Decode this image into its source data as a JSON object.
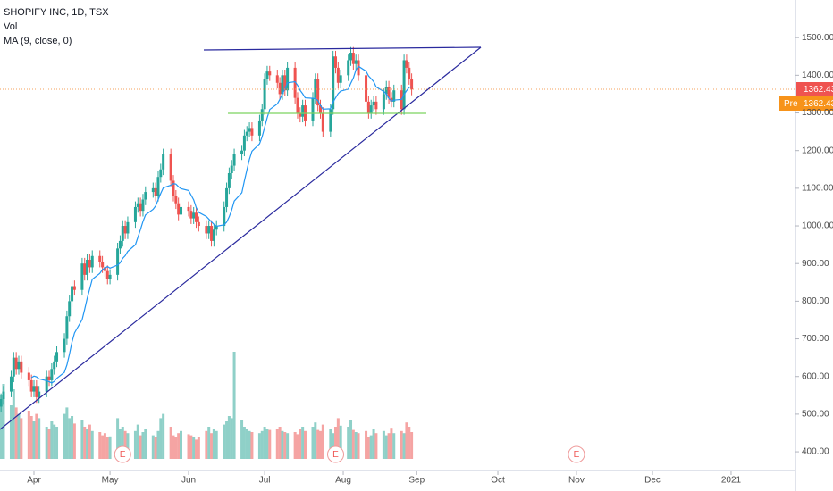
{
  "chart_data": {
    "type": "candlestick",
    "title": "SHOPIFY INC, 1D, TSX",
    "volume_label": "Vol",
    "ma_label": "MA (9, close, 0)",
    "x": [
      -13,
      -12,
      -9,
      -8,
      -7,
      -6,
      -5,
      -2,
      -1,
      0,
      1,
      2,
      5,
      6,
      7,
      8,
      9,
      12,
      13,
      14,
      15,
      16,
      19,
      20,
      21,
      22,
      23,
      26,
      27,
      28,
      29,
      30,
      33,
      34,
      35,
      36,
      37,
      40,
      41,
      42,
      43,
      44,
      47,
      48,
      49,
      50,
      51,
      54,
      55,
      56,
      57,
      58,
      61,
      62,
      63,
      64,
      65,
      68,
      69,
      70,
      71,
      72,
      75,
      76,
      77,
      78,
      79,
      82,
      83,
      84,
      85,
      86,
      89,
      90,
      91,
      92,
      93,
      96,
      97,
      98,
      99,
      100,
      103,
      104,
      105,
      106,
      107,
      110,
      111,
      112,
      113,
      114,
      117,
      118,
      119,
      120,
      121,
      124,
      125,
      126,
      127,
      128,
      131,
      132,
      133,
      134,
      135,
      138,
      139,
      140,
      141,
      142,
      145,
      146,
      147,
      148,
      149
    ],
    "open": [
      520,
      540,
      560,
      600,
      650,
      620,
      640,
      610,
      590,
      560,
      575,
      545,
      560,
      600,
      590,
      620,
      640,
      665,
      700,
      760,
      800,
      840,
      830,
      900,
      870,
      910,
      890,
      920,
      905,
      890,
      880,
      860,
      870,
      940,
      960,
      1000,
      980,
      1010,
      1050,
      1060,
      1040,
      1070,
      1090,
      1100,
      1080,
      1130,
      1150,
      1190,
      1120,
      1080,
      1060,
      1030,
      1050,
      1040,
      1020,
      1035,
      1010,
      1000,
      980,
      1000,
      960,
      990,
      1000,
      1050,
      1100,
      1140,
      1160,
      1190,
      1200,
      1240,
      1250,
      1260,
      1240,
      1280,
      1310,
      1390,
      1410,
      1400,
      1380,
      1350,
      1400,
      1360,
      1420,
      1340,
      1300,
      1290,
      1320,
      1280,
      1340,
      1390,
      1320,
      1300,
      1250,
      1310,
      1450,
      1420,
      1380,
      1400,
      1440,
      1460,
      1430,
      1440,
      1400,
      1330,
      1300,
      1320,
      1330,
      1310,
      1350,
      1370,
      1340,
      1330,
      1360,
      1310,
      1440,
      1420,
      1390
    ],
    "high": [
      555,
      575,
      615,
      665,
      665,
      655,
      655,
      625,
      605,
      590,
      590,
      575,
      615,
      615,
      635,
      655,
      680,
      715,
      775,
      815,
      855,
      855,
      915,
      915,
      925,
      925,
      935,
      935,
      920,
      905,
      895,
      885,
      955,
      975,
      1015,
      1015,
      1025,
      1065,
      1075,
      1075,
      1085,
      1105,
      1115,
      1115,
      1145,
      1165,
      1205,
      1205,
      1135,
      1095,
      1075,
      1065,
      1065,
      1055,
      1050,
      1050,
      1025,
      1015,
      1015,
      1015,
      1005,
      1015,
      1065,
      1115,
      1155,
      1175,
      1205,
      1215,
      1255,
      1265,
      1275,
      1275,
      1295,
      1325,
      1405,
      1425,
      1425,
      1415,
      1395,
      1415,
      1415,
      1435,
      1435,
      1355,
      1315,
      1335,
      1335,
      1355,
      1405,
      1405,
      1335,
      1315,
      1325,
      1465,
      1465,
      1435,
      1415,
      1455,
      1475,
      1475,
      1455,
      1455,
      1415,
      1345,
      1335,
      1345,
      1345,
      1365,
      1385,
      1385,
      1355,
      1375,
      1375,
      1455,
      1455,
      1435,
      1405
    ],
    "low": [
      505,
      525,
      545,
      585,
      605,
      605,
      595,
      575,
      545,
      545,
      530,
      530,
      545,
      575,
      575,
      605,
      625,
      650,
      685,
      745,
      785,
      815,
      815,
      855,
      855,
      875,
      875,
      890,
      875,
      865,
      845,
      845,
      855,
      925,
      945,
      965,
      965,
      995,
      1035,
      1025,
      1025,
      1055,
      1075,
      1065,
      1065,
      1115,
      1135,
      1105,
      1065,
      1045,
      1015,
      1015,
      1025,
      1005,
      1005,
      995,
      985,
      965,
      965,
      945,
      945,
      975,
      985,
      1035,
      1085,
      1125,
      1145,
      1175,
      1185,
      1225,
      1235,
      1225,
      1225,
      1265,
      1295,
      1375,
      1385,
      1365,
      1335,
      1335,
      1345,
      1345,
      1325,
      1285,
      1275,
      1275,
      1265,
      1265,
      1325,
      1305,
      1285,
      1235,
      1235,
      1295,
      1405,
      1365,
      1365,
      1385,
      1425,
      1415,
      1415,
      1385,
      1315,
      1285,
      1285,
      1305,
      1295,
      1295,
      1335,
      1325,
      1315,
      1315,
      1295,
      1295,
      1405,
      1375,
      1347
    ],
    "close": [
      540,
      560,
      600,
      650,
      620,
      640,
      610,
      590,
      560,
      575,
      545,
      560,
      600,
      590,
      620,
      640,
      665,
      700,
      760,
      800,
      840,
      830,
      900,
      870,
      910,
      890,
      920,
      905,
      890,
      880,
      860,
      870,
      940,
      960,
      1000,
      980,
      1010,
      1050,
      1060,
      1040,
      1070,
      1090,
      1100,
      1080,
      1130,
      1150,
      1190,
      1120,
      1080,
      1060,
      1030,
      1050,
      1040,
      1020,
      1035,
      1010,
      1000,
      980,
      1000,
      960,
      990,
      1000,
      1050,
      1100,
      1140,
      1160,
      1190,
      1200,
      1240,
      1250,
      1260,
      1240,
      1280,
      1310,
      1390,
      1410,
      1400,
      1380,
      1350,
      1400,
      1360,
      1420,
      1340,
      1300,
      1290,
      1320,
      1280,
      1340,
      1390,
      1320,
      1300,
      1250,
      1310,
      1450,
      1420,
      1380,
      1400,
      1440,
      1460,
      1430,
      1440,
      1400,
      1330,
      1300,
      1320,
      1330,
      1310,
      1350,
      1370,
      1340,
      1330,
      1360,
      1310,
      1440,
      1420,
      1390,
      1362.43
    ],
    "volume": [
      600,
      700,
      500,
      650,
      480,
      420,
      380,
      450,
      400,
      350,
      420,
      380,
      300,
      280,
      350,
      320,
      300,
      420,
      480,
      380,
      400,
      330,
      360,
      300,
      280,
      320,
      260,
      250,
      220,
      240,
      200,
      210,
      380,
      280,
      300,
      260,
      240,
      260,
      320,
      220,
      250,
      280,
      220,
      200,
      260,
      380,
      420,
      300,
      220,
      200,
      240,
      260,
      230,
      220,
      200,
      180,
      200,
      260,
      300,
      240,
      280,
      260,
      320,
      350,
      400,
      380,
      1000,
      360,
      300,
      280,
      260,
      250,
      240,
      260,
      300,
      280,
      270,
      280,
      300,
      260,
      250,
      240,
      250,
      230,
      280,
      300,
      260,
      300,
      340,
      270,
      260,
      320,
      280,
      240,
      300,
      380,
      310,
      300,
      360,
      270,
      250,
      240,
      260,
      200,
      220,
      280,
      240,
      260,
      220,
      240,
      290,
      240,
      260,
      240,
      340,
      300,
      250
    ],
    "ma": [
      null,
      null,
      null,
      null,
      null,
      null,
      null,
      null,
      597,
      601,
      599,
      594,
      589,
      586,
      583,
      587,
      595,
      611,
      631,
      659,
      691,
      716,
      751,
      778,
      808,
      833,
      858,
      874,
      884,
      888,
      892,
      888,
      896,
      902,
      914,
      921,
      932,
      950,
      970,
      990,
      1012,
      1029,
      1044,
      1053,
      1070,
      1086,
      1101,
      1108,
      1112,
      1111,
      1104,
      1099,
      1094,
      1082,
      1069,
      1049,
      1036,
      1025,
      1018,
      1011,
      1004,
      999,
      1003,
      1010,
      1024,
      1042,
      1066,
      1088,
      1119,
      1148,
      1177,
      1198,
      1218,
      1237,
      1262,
      1287,
      1309,
      1324,
      1336,
      1351,
      1364,
      1380,
      1383,
      1373,
      1360,
      1351,
      1340,
      1339,
      1338,
      1333,
      1320,
      1310,
      1311,
      1329,
      1340,
      1351,
      1358,
      1363,
      1379,
      1393,
      1414,
      1424,
      1411,
      1398,
      1391,
      1383,
      1369,
      1357,
      1350,
      1339,
      1331,
      1334,
      1336,
      1349,
      1359,
      1368,
      1369
    ],
    "xlim": [
      -13.4,
      300.4
    ],
    "xticks": [
      {
        "value": 0,
        "label": "Apr"
      },
      {
        "value": 30,
        "label": "May"
      },
      {
        "value": 61,
        "label": "Jun"
      },
      {
        "value": 91,
        "label": "Jul"
      },
      {
        "value": 122,
        "label": "Aug"
      },
      {
        "value": 151,
        "label": "Sep"
      },
      {
        "value": 183,
        "label": "Oct"
      },
      {
        "value": 214,
        "label": "Nov"
      },
      {
        "value": 244,
        "label": "Dec"
      },
      {
        "value": 275,
        "label": "2021"
      }
    ],
    "ylim": [
      348,
      1600
    ],
    "yticks": [
      {
        "value": 1500,
        "label": "1500.00"
      },
      {
        "value": 1400,
        "label": "1400.00"
      },
      {
        "value": 1300,
        "label": "1300.00"
      },
      {
        "value": 1200,
        "label": "1200.00"
      },
      {
        "value": 1100,
        "label": "1100.00"
      },
      {
        "value": 1000,
        "label": "1000.00"
      },
      {
        "value": 900,
        "label": "900.00"
      },
      {
        "value": 800,
        "label": "800.00"
      },
      {
        "value": 700,
        "label": "700.00"
      },
      {
        "value": 600,
        "label": "600.00"
      },
      {
        "value": 500,
        "label": "500.00"
      },
      {
        "value": 400,
        "label": "400.00"
      }
    ],
    "vol_ylim": [
      0,
      1000
    ],
    "colors": {
      "up": "#26a69a",
      "down": "#ef5350",
      "vol_up": "#8fd0c8",
      "vol_down": "#f5a4a3",
      "ma": "#2196f3"
    },
    "pre_label": "Pre",
    "pre_price": 1362.43,
    "earnings": [
      {
        "x": 35,
        "label": "E"
      },
      {
        "x": 119,
        "label": "E"
      },
      {
        "x": 214,
        "label": "E"
      }
    ]
  }
}
